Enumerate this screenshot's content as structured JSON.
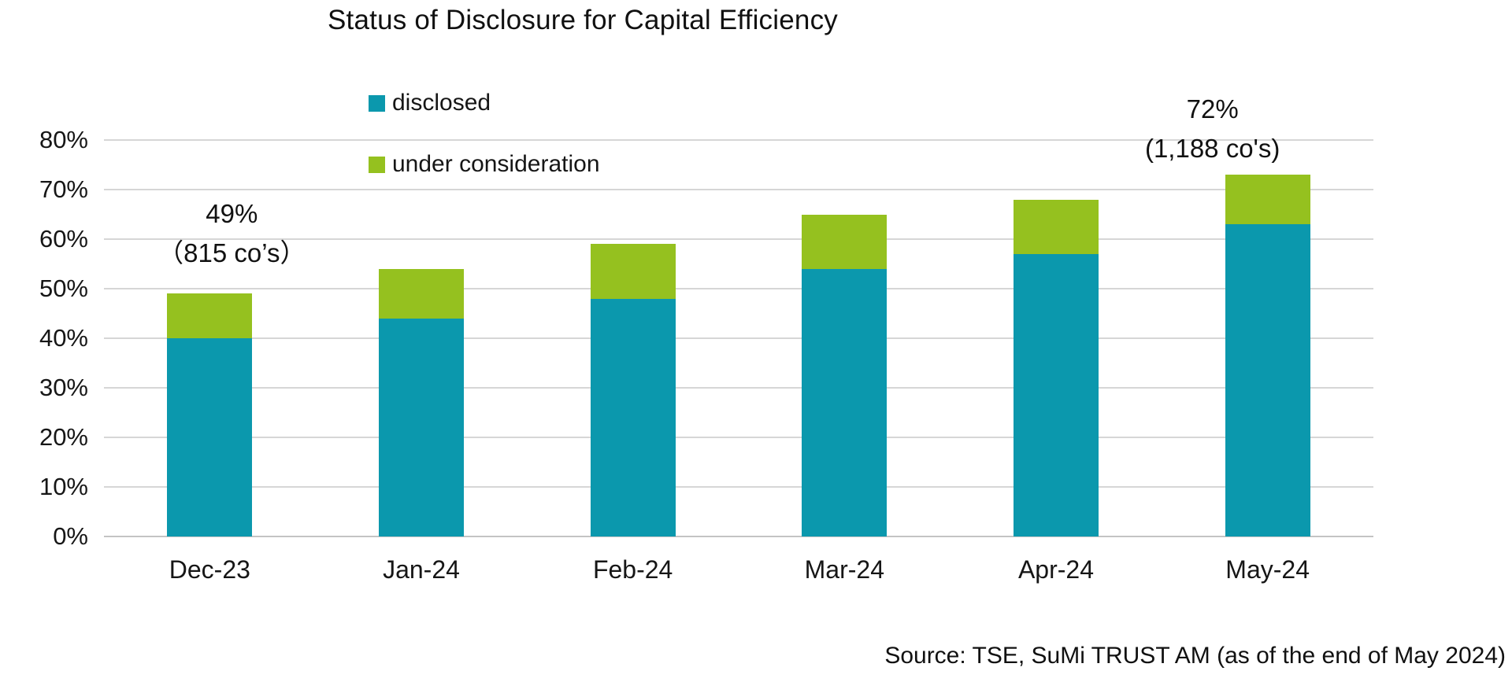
{
  "source": "Source: TSE, SuMi TRUST AM (as of the end of May 2024)",
  "chart_data": {
    "type": "bar",
    "stacked": true,
    "title": "Status of Disclosure for Capital Efficiency",
    "categories": [
      "Dec-23",
      "Jan-24",
      "Feb-24",
      "Mar-24",
      "Apr-24",
      "May-24"
    ],
    "series": [
      {
        "name": "disclosed",
        "color": "#0b98ad",
        "values": [
          40,
          44,
          48,
          54,
          57,
          63
        ]
      },
      {
        "name": "under consideration",
        "color": "#95c11f",
        "values": [
          9,
          10,
          11,
          11,
          11,
          10
        ]
      }
    ],
    "totals": [
      49,
      54,
      59,
      65,
      68,
      73
    ],
    "xlabel": "",
    "ylabel": "",
    "ylim": [
      0,
      80
    ],
    "ytick_step": 10,
    "ytick_labels": [
      "0%",
      "10%",
      "20%",
      "30%",
      "40%",
      "50%",
      "60%",
      "70%",
      "80%"
    ],
    "grid": true,
    "legend_position": "top-left-inside",
    "annotations": [
      {
        "category": "Dec-23",
        "lines": [
          "49%",
          "（815 co’s）"
        ]
      },
      {
        "category": "May-24",
        "lines": [
          "72%",
          "(1,188 co's)"
        ]
      }
    ],
    "colors": {
      "gridline": "#d6d6d6",
      "axis_text": "#161616",
      "title_text": "#111111"
    }
  }
}
